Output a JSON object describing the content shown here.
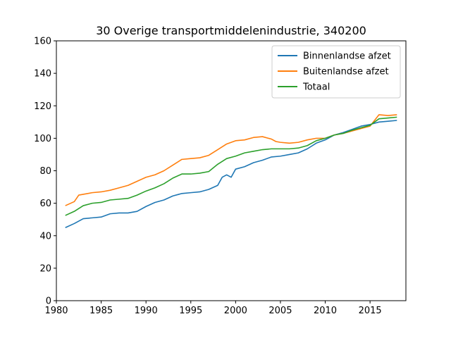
{
  "chart_data": {
    "type": "line",
    "title": "30 Overige transportmiddelenindustrie, 340200",
    "xlabel": "",
    "ylabel": "",
    "xlim": [
      1980,
      2019
    ],
    "ylim": [
      0,
      160
    ],
    "xticks": [
      1980,
      1985,
      1990,
      1995,
      2000,
      2005,
      2010,
      2015
    ],
    "yticks": [
      0,
      20,
      40,
      60,
      80,
      100,
      120,
      140,
      160
    ],
    "grid": false,
    "legend_position": "top-right",
    "series": [
      {
        "name": "Binnenlandse afzet",
        "color": "#1f77b4",
        "points": [
          [
            1981.0,
            45.0
          ],
          [
            1982.0,
            47.5
          ],
          [
            1983.0,
            50.5
          ],
          [
            1984.0,
            51.0
          ],
          [
            1985.0,
            51.5
          ],
          [
            1986.0,
            53.5
          ],
          [
            1987.0,
            54.0
          ],
          [
            1988.0,
            54.0
          ],
          [
            1989.0,
            55.0
          ],
          [
            1990.0,
            58.0
          ],
          [
            1991.0,
            60.5
          ],
          [
            1992.0,
            62.0
          ],
          [
            1993.0,
            64.5
          ],
          [
            1994.0,
            66.0
          ],
          [
            1995.0,
            66.5
          ],
          [
            1996.0,
            67.0
          ],
          [
            1997.0,
            68.5
          ],
          [
            1998.0,
            71.0
          ],
          [
            1998.5,
            76.0
          ],
          [
            1999.0,
            77.5
          ],
          [
            1999.5,
            76.0
          ],
          [
            2000.0,
            81.0
          ],
          [
            2001.0,
            82.5
          ],
          [
            2002.0,
            85.0
          ],
          [
            2003.0,
            86.5
          ],
          [
            2004.0,
            88.5
          ],
          [
            2005.0,
            89.0
          ],
          [
            2006.0,
            90.0
          ],
          [
            2007.0,
            91.0
          ],
          [
            2008.0,
            93.5
          ],
          [
            2009.0,
            97.0
          ],
          [
            2010.0,
            99.0
          ],
          [
            2011.0,
            102.0
          ],
          [
            2012.0,
            103.5
          ],
          [
            2013.0,
            105.5
          ],
          [
            2014.0,
            107.5
          ],
          [
            2015.0,
            108.5
          ],
          [
            2016.0,
            110.0
          ],
          [
            2017.0,
            110.5
          ],
          [
            2018.0,
            111.0
          ]
        ]
      },
      {
        "name": "Buitenlandse afzet",
        "color": "#ff7f0e",
        "points": [
          [
            1981.0,
            58.5
          ],
          [
            1982.0,
            61.0
          ],
          [
            1982.5,
            65.0
          ],
          [
            1983.0,
            65.5
          ],
          [
            1984.0,
            66.5
          ],
          [
            1985.0,
            67.0
          ],
          [
            1986.0,
            68.0
          ],
          [
            1987.0,
            69.5
          ],
          [
            1988.0,
            71.0
          ],
          [
            1989.0,
            73.5
          ],
          [
            1990.0,
            76.0
          ],
          [
            1991.0,
            77.5
          ],
          [
            1992.0,
            80.0
          ],
          [
            1993.0,
            83.5
          ],
          [
            1994.0,
            87.0
          ],
          [
            1995.0,
            87.5
          ],
          [
            1996.0,
            88.0
          ],
          [
            1997.0,
            89.5
          ],
          [
            1998.0,
            93.0
          ],
          [
            1999.0,
            96.5
          ],
          [
            2000.0,
            98.5
          ],
          [
            2001.0,
            99.0
          ],
          [
            2002.0,
            100.5
          ],
          [
            2003.0,
            101.0
          ],
          [
            2004.0,
            99.5
          ],
          [
            2004.5,
            98.0
          ],
          [
            2005.0,
            97.5
          ],
          [
            2006.0,
            97.0
          ],
          [
            2007.0,
            97.5
          ],
          [
            2008.0,
            99.0
          ],
          [
            2009.0,
            100.0
          ],
          [
            2010.0,
            100.0
          ],
          [
            2011.0,
            102.0
          ],
          [
            2012.0,
            103.0
          ],
          [
            2013.0,
            104.5
          ],
          [
            2014.0,
            106.0
          ],
          [
            2015.0,
            107.5
          ],
          [
            2016.0,
            114.5
          ],
          [
            2017.0,
            114.0
          ],
          [
            2018.0,
            114.5
          ]
        ]
      },
      {
        "name": "Totaal",
        "color": "#2ca02c",
        "points": [
          [
            1981.0,
            52.5
          ],
          [
            1982.0,
            55.0
          ],
          [
            1983.0,
            58.5
          ],
          [
            1984.0,
            60.0
          ],
          [
            1985.0,
            60.5
          ],
          [
            1986.0,
            62.0
          ],
          [
            1987.0,
            62.5
          ],
          [
            1988.0,
            63.0
          ],
          [
            1989.0,
            65.0
          ],
          [
            1990.0,
            67.5
          ],
          [
            1991.0,
            69.5
          ],
          [
            1992.0,
            72.0
          ],
          [
            1993.0,
            75.5
          ],
          [
            1994.0,
            78.0
          ],
          [
            1995.0,
            78.0
          ],
          [
            1996.0,
            78.5
          ],
          [
            1997.0,
            79.5
          ],
          [
            1998.0,
            84.0
          ],
          [
            1999.0,
            87.5
          ],
          [
            2000.0,
            89.0
          ],
          [
            2001.0,
            91.0
          ],
          [
            2002.0,
            92.0
          ],
          [
            2003.0,
            93.0
          ],
          [
            2004.0,
            93.5
          ],
          [
            2005.0,
            93.5
          ],
          [
            2006.0,
            93.5
          ],
          [
            2007.0,
            94.0
          ],
          [
            2008.0,
            95.5
          ],
          [
            2009.0,
            98.5
          ],
          [
            2010.0,
            100.0
          ],
          [
            2011.0,
            102.0
          ],
          [
            2012.0,
            103.0
          ],
          [
            2013.0,
            105.0
          ],
          [
            2014.0,
            106.5
          ],
          [
            2015.0,
            108.0
          ],
          [
            2016.0,
            112.0
          ],
          [
            2017.0,
            112.5
          ],
          [
            2018.0,
            113.0
          ]
        ]
      }
    ]
  }
}
